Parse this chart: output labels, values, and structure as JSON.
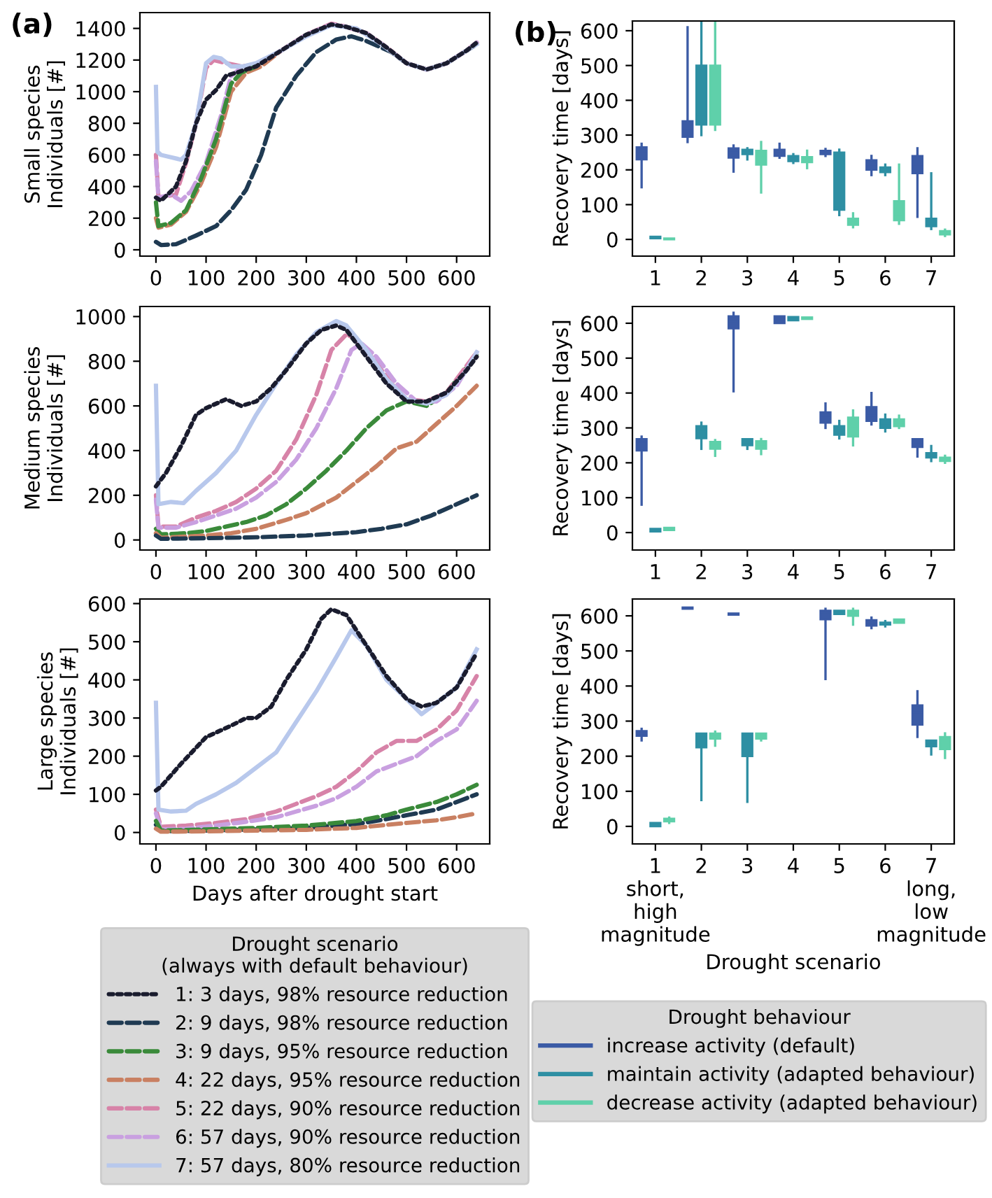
{
  "chart_data": [
    {
      "type": "line",
      "annotations": [
        "(a)"
      ],
      "ylabel": "Small species\nIndividuals [#]",
      "xlim": [
        -32,
        666
      ],
      "ylim": [
        -40,
        1500
      ],
      "xticks": [
        0,
        100,
        200,
        300,
        400,
        500,
        600
      ],
      "yticks": [
        0,
        200,
        400,
        600,
        800,
        1000,
        1200,
        1400
      ],
      "grid": false,
      "legend": false,
      "marker": "none",
      "series": [
        {
          "color": "#1a1c2e",
          "line_style": "dotted",
          "x": [
            0,
            10,
            40,
            60,
            80,
            100,
            120,
            140,
            160,
            200,
            250,
            300,
            350,
            380,
            420,
            460,
            500,
            540,
            580,
            620,
            640
          ],
          "values": [
            330,
            310,
            400,
            560,
            800,
            950,
            1010,
            1100,
            1120,
            1160,
            1260,
            1360,
            1425,
            1410,
            1370,
            1280,
            1180,
            1140,
            1180,
            1260,
            1310
          ]
        },
        {
          "color": "#1f3a52",
          "line_style": "dashed",
          "x": [
            0,
            10,
            40,
            80,
            120,
            150,
            180,
            210,
            240,
            280,
            320,
            360,
            390,
            420,
            470,
            500,
            540,
            580,
            640
          ],
          "values": [
            50,
            30,
            35,
            90,
            150,
            250,
            380,
            600,
            900,
            1100,
            1250,
            1330,
            1350,
            1320,
            1250,
            1180,
            1140,
            1180,
            1300
          ]
        },
        {
          "color": "#3a8a3a",
          "line_style": "dashed",
          "x": [
            0,
            5,
            30,
            60,
            90,
            120,
            150,
            170,
            200
          ],
          "values": [
            300,
            150,
            170,
            250,
            450,
            700,
            1050,
            1120,
            1160
          ]
        },
        {
          "color": "#c98062",
          "line_style": "dashed",
          "x": [
            0,
            5,
            30,
            60,
            90,
            120,
            150,
            180,
            210,
            250,
            300,
            350,
            380,
            420,
            460,
            500,
            540,
            580,
            620,
            640
          ],
          "values": [
            200,
            140,
            160,
            240,
            420,
            650,
            1000,
            1120,
            1160,
            1260,
            1360,
            1425,
            1410,
            1370,
            1280,
            1180,
            1140,
            1180,
            1260,
            1310
          ]
        },
        {
          "color": "#d783a8",
          "line_style": "dashed",
          "x": [
            0,
            5,
            40,
            60,
            80,
            100,
            115,
            140,
            170,
            200,
            250,
            300,
            350,
            380,
            420,
            460,
            500,
            540,
            580,
            620,
            640
          ],
          "values": [
            600,
            330,
            350,
            550,
            800,
            1150,
            1200,
            1180,
            1160,
            1170,
            1260,
            1360,
            1430,
            1410,
            1370,
            1280,
            1180,
            1140,
            1180,
            1260,
            1310
          ]
        },
        {
          "color": "#c9a0e0",
          "line_style": "dashed",
          "x": [
            0,
            5,
            30,
            50,
            70,
            100,
            130,
            150,
            170,
            200,
            250,
            300,
            350,
            380,
            420,
            460,
            500,
            540,
            580,
            620,
            640
          ],
          "values": [
            560,
            330,
            350,
            310,
            370,
            550,
            850,
            1100,
            1150,
            1170,
            1260,
            1360,
            1425,
            1410,
            1370,
            1280,
            1180,
            1140,
            1180,
            1260,
            1310
          ]
        },
        {
          "color": "#b8c8ec",
          "line_style": "solid",
          "x": [
            0,
            3,
            10,
            50,
            60,
            80,
            100,
            115,
            130,
            150,
            175,
            200,
            250,
            300,
            350,
            400,
            450,
            500,
            540,
            580,
            620,
            640
          ],
          "values": [
            1030,
            620,
            600,
            570,
            600,
            800,
            1180,
            1220,
            1210,
            1160,
            1160,
            1180,
            1260,
            1350,
            1420,
            1400,
            1300,
            1180,
            1140,
            1180,
            1260,
            1300
          ]
        }
      ]
    },
    {
      "type": "box",
      "annotations": [
        "(b)"
      ],
      "ylabel": "Recovery time [days]",
      "categories": [
        "1",
        "2",
        "3",
        "4",
        "5",
        "6",
        "7"
      ],
      "ylim": [
        -48,
        628
      ],
      "yticks": [
        0,
        100,
        200,
        300,
        400,
        500,
        600
      ],
      "grid": false,
      "legend": false,
      "series": [
        {
          "color": "#3b5ba5",
          "boxes": [
            {
              "low": 150,
              "q1": 230,
              "median": 248,
              "q3": 265,
              "high": 275
            },
            {
              "low": 280,
              "q1": 295,
              "median": 318,
              "q3": 340,
              "high": 610
            },
            {
              "low": 195,
              "q1": 235,
              "median": 250,
              "q3": 262,
              "high": 270
            },
            {
              "low": 235,
              "q1": 240,
              "median": 248,
              "q3": 258,
              "high": 275
            },
            {
              "low": 240,
              "q1": 245,
              "median": 250,
              "q3": 255,
              "high": 260
            },
            {
              "low": 185,
              "q1": 200,
              "median": 215,
              "q3": 228,
              "high": 240
            },
            {
              "low": 65,
              "q1": 190,
              "median": 215,
              "q3": 240,
              "high": 262
            }
          ]
        },
        {
          "color": "#2e8fa3",
          "boxes": [
            {
              "low": 3,
              "q1": 3,
              "median": 5,
              "q3": 8,
              "high": 8
            },
            {
              "low": 300,
              "q1": 330,
              "median": 360,
              "q3": 500,
              "high": 628
            },
            {
              "low": 230,
              "q1": 245,
              "median": 250,
              "q3": 258,
              "high": 262
            },
            {
              "low": 220,
              "q1": 225,
              "median": 232,
              "q3": 240,
              "high": 245
            },
            {
              "low": 70,
              "q1": 85,
              "median": 92,
              "q3": 250,
              "high": 258
            },
            {
              "low": 185,
              "q1": 193,
              "median": 200,
              "q3": 207,
              "high": 215
            },
            {
              "low": 30,
              "q1": 38,
              "median": 45,
              "q3": 60,
              "high": 190
            }
          ]
        },
        {
          "color": "#5fd0aa",
          "boxes": [
            {
              "low": 0,
              "q1": 0,
              "median": 1,
              "q3": 3,
              "high": 3
            },
            {
              "low": 315,
              "q1": 330,
              "median": 365,
              "q3": 500,
              "high": 628
            },
            {
              "low": 135,
              "q1": 215,
              "median": 237,
              "q3": 255,
              "high": 280
            },
            {
              "low": 205,
              "q1": 222,
              "median": 230,
              "q3": 237,
              "high": 255
            },
            {
              "low": 35,
              "q1": 42,
              "median": 50,
              "q3": 60,
              "high": 75
            },
            {
              "low": 45,
              "q1": 55,
              "median": 70,
              "q3": 110,
              "high": 215
            },
            {
              "low": 10,
              "q1": 14,
              "median": 20,
              "q3": 24,
              "high": 28
            }
          ]
        }
      ]
    },
    {
      "type": "line",
      "ylabel": "Medium species\nIndividuals [#]",
      "xlim": [
        -32,
        666
      ],
      "ylim": [
        -45,
        1045
      ],
      "xticks": [
        0,
        100,
        200,
        300,
        400,
        500,
        600
      ],
      "yticks": [
        0,
        200,
        400,
        600,
        800,
        1000
      ],
      "grid": false,
      "legend": false,
      "marker": "none",
      "series": [
        {
          "color": "#1a1c2e",
          "line_style": "dotted",
          "x": [
            0,
            20,
            50,
            80,
            100,
            140,
            170,
            200,
            230,
            260,
            300,
            330,
            360,
            380,
            420,
            460,
            500,
            540,
            580,
            620,
            640
          ],
          "values": [
            240,
            300,
            420,
            560,
            590,
            630,
            600,
            620,
            680,
            760,
            880,
            940,
            960,
            940,
            820,
            700,
            620,
            620,
            660,
            760,
            820
          ]
        },
        {
          "color": "#1f3a52",
          "line_style": "dashed",
          "x": [
            0,
            10,
            100,
            200,
            300,
            400,
            450,
            500,
            550,
            600,
            640
          ],
          "values": [
            20,
            5,
            8,
            12,
            20,
            35,
            50,
            70,
            110,
            160,
            200
          ]
        },
        {
          "color": "#3a8a3a",
          "line_style": "dashed",
          "x": [
            0,
            10,
            60,
            100,
            140,
            180,
            220,
            260,
            300,
            340,
            380,
            420,
            460,
            500,
            540,
            580,
            640
          ],
          "values": [
            50,
            25,
            30,
            40,
            60,
            80,
            110,
            160,
            230,
            310,
            400,
            500,
            580,
            620,
            600,
            660,
            830
          ]
        },
        {
          "color": "#c98062",
          "line_style": "dashed",
          "x": [
            0,
            10,
            60,
            100,
            150,
            200,
            260,
            300,
            360,
            400,
            440,
            480,
            520,
            560,
            600,
            640
          ],
          "values": [
            30,
            10,
            15,
            20,
            30,
            50,
            90,
            120,
            190,
            260,
            330,
            410,
            440,
            520,
            600,
            690
          ]
        },
        {
          "color": "#d783a8",
          "line_style": "dashed",
          "x": [
            0,
            5,
            40,
            80,
            120,
            160,
            200,
            240,
            280,
            320,
            350,
            380,
            400,
            430,
            470,
            500,
            540,
            580,
            640
          ],
          "values": [
            200,
            60,
            60,
            100,
            130,
            170,
            230,
            310,
            450,
            650,
            850,
            920,
            900,
            820,
            700,
            630,
            620,
            660,
            840
          ]
        },
        {
          "color": "#c9a0e0",
          "line_style": "dashed",
          "x": [
            0,
            5,
            40,
            80,
            120,
            160,
            200,
            240,
            280,
            320,
            360,
            390,
            410,
            440,
            480,
            520,
            560,
            600,
            640
          ],
          "values": [
            180,
            55,
            55,
            80,
            110,
            140,
            190,
            260,
            360,
            500,
            680,
            850,
            880,
            820,
            700,
            620,
            620,
            690,
            840
          ]
        },
        {
          "color": "#b8c8ec",
          "line_style": "solid",
          "x": [
            0,
            5,
            30,
            55,
            80,
            120,
            160,
            200,
            240,
            280,
            320,
            360,
            380,
            420,
            460,
            500,
            540,
            580,
            620,
            640
          ],
          "values": [
            690,
            160,
            170,
            165,
            220,
            300,
            400,
            560,
            700,
            830,
            930,
            980,
            960,
            850,
            720,
            630,
            610,
            650,
            760,
            840
          ]
        }
      ]
    },
    {
      "type": "box",
      "ylabel": "Recovery time [days]",
      "categories": [
        "1",
        "2",
        "3",
        "4",
        "5",
        "6",
        "7"
      ],
      "ylim": [
        -50,
        648
      ],
      "yticks": [
        0,
        100,
        200,
        300,
        400,
        500,
        600
      ],
      "grid": false,
      "legend": false,
      "series": [
        {
          "color": "#3b5ba5",
          "boxes": [
            {
              "low": 80,
              "q1": 235,
              "median": 260,
              "q3": 268,
              "high": 275
            },
            null,
            {
              "low": 405,
              "q1": 585,
              "median": 605,
              "q3": 620,
              "high": 630
            },
            {
              "low": 600,
              "q1": 600,
              "median": 612,
              "q3": 620,
              "high": 620
            },
            {
              "low": 300,
              "q1": 315,
              "median": 330,
              "q3": 345,
              "high": 370
            },
            {
              "low": 310,
              "q1": 320,
              "median": 335,
              "q3": 360,
              "high": 400
            },
            {
              "low": 218,
              "q1": 245,
              "median": 258,
              "q3": 268,
              "high": 268
            }
          ]
        },
        {
          "color": "#2e8fa3",
          "boxes": [
            {
              "low": 3,
              "q1": 3,
              "median": 7,
              "q3": 11,
              "high": 11
            },
            {
              "low": 240,
              "q1": 270,
              "median": 290,
              "q3": 305,
              "high": 315
            },
            {
              "low": 240,
              "q1": 250,
              "median": 258,
              "q3": 268,
              "high": 268
            },
            {
              "low": 608,
              "q1": 608,
              "median": 612,
              "q3": 618,
              "high": 618
            },
            {
              "low": 270,
              "q1": 280,
              "median": 292,
              "q3": 305,
              "high": 320
            },
            {
              "low": 290,
              "q1": 300,
              "median": 312,
              "q3": 325,
              "high": 338
            },
            {
              "low": 205,
              "q1": 215,
              "median": 220,
              "q3": 228,
              "high": 248
            }
          ]
        },
        {
          "color": "#5fd0aa",
          "boxes": [
            {
              "low": 7,
              "q1": 7,
              "median": 10,
              "q3": 14,
              "high": 14
            },
            {
              "low": 220,
              "q1": 240,
              "median": 250,
              "q3": 260,
              "high": 265
            },
            {
              "low": 225,
              "q1": 240,
              "median": 252,
              "q3": 262,
              "high": 268
            },
            {
              "low": 612,
              "q1": 612,
              "median": 615,
              "q3": 617,
              "high": 617
            },
            {
              "low": 250,
              "q1": 275,
              "median": 300,
              "q3": 330,
              "high": 350
            },
            {
              "low": 300,
              "q1": 305,
              "median": 315,
              "q3": 325,
              "high": 335
            },
            {
              "low": 200,
              "q1": 205,
              "median": 210,
              "q3": 215,
              "high": 220
            }
          ]
        }
      ]
    },
    {
      "type": "line",
      "ylabel": "Large species\nIndividuals [#]",
      "xlabel": "Days after drought start",
      "legend_title": "Drought scenario\n(always with default behaviour)",
      "xlim": [
        -32,
        666
      ],
      "ylim": [
        -30,
        612
      ],
      "xticks": [
        0,
        100,
        200,
        300,
        400,
        500,
        600
      ],
      "yticks": [
        0,
        100,
        200,
        300,
        400,
        500,
        600
      ],
      "grid": false,
      "legend": "bottom",
      "marker": "none",
      "series": [
        {
          "name": "1: 3 days, 98% resource reduction",
          "color": "#1a1c2e",
          "line_style": "dotted",
          "x": [
            0,
            10,
            50,
            100,
            150,
            180,
            200,
            230,
            260,
            300,
            330,
            350,
            380,
            400,
            430,
            460,
            500,
            530,
            560,
            600,
            640
          ],
          "values": [
            110,
            120,
            180,
            250,
            280,
            300,
            300,
            330,
            400,
            480,
            560,
            585,
            570,
            530,
            470,
            410,
            350,
            330,
            340,
            380,
            470
          ]
        },
        {
          "name": "2: 9 days, 98% resource reduction",
          "color": "#1f3a52",
          "line_style": "dashed",
          "x": [
            0,
            10,
            100,
            200,
            300,
            400,
            460,
            500,
            560,
            600,
            640
          ],
          "values": [
            20,
            3,
            5,
            8,
            12,
            22,
            35,
            45,
            60,
            80,
            100
          ]
        },
        {
          "name": "3: 9 days, 95% resource reduction",
          "color": "#3a8a3a",
          "line_style": "dashed",
          "x": [
            0,
            10,
            100,
            200,
            300,
            400,
            460,
            500,
            560,
            600,
            640
          ],
          "values": [
            30,
            5,
            8,
            12,
            18,
            30,
            45,
            60,
            80,
            100,
            125
          ]
        },
        {
          "name": "4: 22 days, 95% resource reduction",
          "color": "#c98062",
          "line_style": "dashed",
          "x": [
            0,
            10,
            100,
            200,
            300,
            400,
            460,
            500,
            560,
            600,
            640
          ],
          "values": [
            10,
            2,
            3,
            5,
            7,
            12,
            20,
            25,
            32,
            40,
            50
          ]
        },
        {
          "name": "5: 22 days, 90% resource reduction",
          "color": "#d783a8",
          "line_style": "dashed",
          "x": [
            0,
            10,
            60,
            120,
            180,
            240,
            280,
            320,
            360,
            400,
            440,
            480,
            520,
            560,
            600,
            640
          ],
          "values": [
            60,
            15,
            18,
            25,
            35,
            55,
            75,
            95,
            120,
            160,
            210,
            240,
            240,
            270,
            320,
            410
          ]
        },
        {
          "name": "6: 57 days, 90% resource reduction",
          "color": "#c9a0e0",
          "line_style": "dashed",
          "x": [
            0,
            10,
            60,
            120,
            180,
            240,
            280,
            320,
            360,
            400,
            440,
            480,
            520,
            560,
            600,
            640
          ],
          "values": [
            50,
            8,
            10,
            18,
            28,
            40,
            55,
            70,
            90,
            120,
            160,
            180,
            200,
            240,
            270,
            345
          ]
        },
        {
          "name": "7: 57 days, 80% resource reduction",
          "color": "#b8c8ec",
          "line_style": "solid",
          "x": [
            0,
            5,
            30,
            60,
            80,
            120,
            160,
            200,
            240,
            280,
            320,
            360,
            390,
            420,
            460,
            500,
            530,
            560,
            600,
            640
          ],
          "values": [
            340,
            60,
            55,
            57,
            75,
            100,
            130,
            170,
            210,
            290,
            370,
            460,
            530,
            490,
            400,
            350,
            310,
            340,
            380,
            480
          ]
        }
      ]
    },
    {
      "type": "box",
      "ylabel": "Recovery time [days]",
      "xlabel": "Drought scenario",
      "legend_title": "Drought behaviour",
      "categories": [
        "1\nshort,\nhigh\nmagnitude",
        "2",
        "3",
        "4",
        "5",
        "6",
        "7\nlong,\nlow\nmagnitude"
      ],
      "ylim": [
        -50,
        648
      ],
      "yticks": [
        0,
        100,
        200,
        300,
        400,
        500,
        600
      ],
      "grid": false,
      "legend": "bottom",
      "series": [
        {
          "name": "increase activity (default)",
          "color": "#3b5ba5",
          "boxes": [
            {
              "low": 245,
              "q1": 258,
              "median": 265,
              "q3": 272,
              "high": 278
            },
            {
              "low": 620,
              "q1": 620,
              "median": 622,
              "q3": 624,
              "high": 624
            },
            {
              "low": 603,
              "q1": 603,
              "median": 605,
              "q3": 607,
              "high": 607
            },
            null,
            {
              "low": 420,
              "q1": 590,
              "median": 610,
              "q3": 615,
              "high": 620
            },
            {
              "low": 565,
              "q1": 572,
              "median": 580,
              "q3": 588,
              "high": 595
            },
            {
              "low": 255,
              "q1": 290,
              "median": 325,
              "q3": 345,
              "high": 385
            }
          ]
        },
        {
          "name": "maintain activity (adapted behaviour)",
          "color": "#2e8fa3",
          "boxes": [
            {
              "low": 0,
              "q1": 0,
              "median": 4,
              "q3": 10,
              "high": 10
            },
            {
              "low": 75,
              "q1": 225,
              "median": 258,
              "q3": 265,
              "high": 265
            },
            {
              "low": 70,
              "q1": 200,
              "median": 255,
              "q3": 265,
              "high": 265
            },
            null,
            {
              "low": 605,
              "q1": 605,
              "median": 610,
              "q3": 615,
              "high": 615
            },
            {
              "low": 570,
              "q1": 575,
              "median": 578,
              "q3": 581,
              "high": 585
            },
            {
              "low": 205,
              "q1": 228,
              "median": 238,
              "q3": 245,
              "high": 245
            }
          ]
        },
        {
          "name": "decrease activity (adapted behaviour)",
          "color": "#5fd0aa",
          "boxes": [
            {
              "low": 10,
              "q1": 14,
              "median": 18,
              "q3": 22,
              "high": 25
            },
            {
              "low": 230,
              "q1": 250,
              "median": 260,
              "q3": 265,
              "high": 270
            },
            {
              "low": 245,
              "q1": 250,
              "median": 255,
              "q3": 265,
              "high": 265
            },
            null,
            {
              "low": 575,
              "q1": 600,
              "median": 610,
              "q3": 615,
              "high": 620
            },
            {
              "low": 580,
              "q1": 580,
              "median": 585,
              "q3": 590,
              "high": 590
            },
            {
              "low": 195,
              "q1": 220,
              "median": 240,
              "q3": 255,
              "high": 265
            }
          ]
        }
      ]
    }
  ]
}
